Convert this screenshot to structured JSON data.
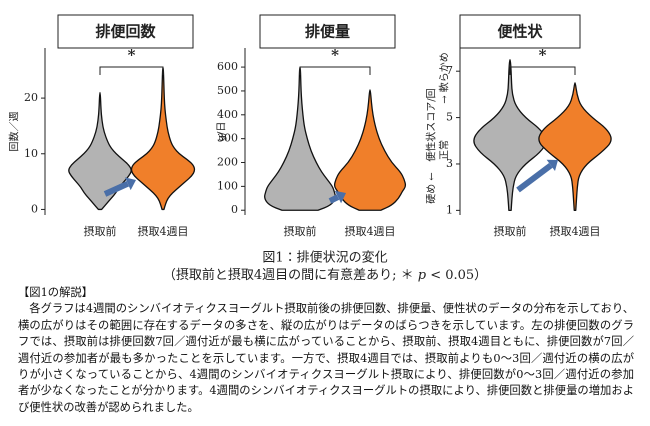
{
  "chart_data": [
    {
      "type": "violin",
      "title": "排便回数",
      "y_label": "回数／週",
      "categories": [
        "摂取前",
        "摂取4週目"
      ],
      "significance": "*",
      "ylim": [
        -1,
        29
      ],
      "yticks": [
        0,
        10,
        20
      ],
      "violins": [
        {
          "color": "#b3b3b3",
          "y": [
            0,
            1,
            2,
            3,
            4,
            5,
            6,
            7,
            8,
            9,
            10,
            11,
            12,
            14,
            16,
            18,
            21
          ],
          "width": [
            0.05,
            0.2,
            0.35,
            0.5,
            0.6,
            0.75,
            0.9,
            1,
            0.9,
            0.7,
            0.5,
            0.35,
            0.25,
            0.12,
            0.06,
            0.03,
            0.01
          ]
        },
        {
          "color": "#f07f2a",
          "y": [
            0,
            1,
            2,
            3,
            4,
            5,
            6,
            7,
            8,
            9,
            10,
            11,
            12,
            14,
            16,
            18,
            20,
            22,
            25.5
          ],
          "width": [
            0.03,
            0.08,
            0.15,
            0.3,
            0.5,
            0.7,
            0.9,
            1,
            0.95,
            0.75,
            0.5,
            0.35,
            0.25,
            0.15,
            0.1,
            0.06,
            0.04,
            0.03,
            0.01
          ]
        }
      ]
    },
    {
      "type": "violin",
      "title": "排便量",
      "y_label": "g/日",
      "categories": [
        "摂取前",
        "摂取4週目"
      ],
      "significance": "*",
      "ylim": [
        -20,
        680
      ],
      "yticks": [
        0,
        100,
        200,
        300,
        400,
        500,
        600
      ],
      "violins": [
        {
          "color": "#b3b3b3",
          "y": [
            0,
            20,
            50,
            80,
            100,
            130,
            160,
            200,
            250,
            300,
            350,
            400,
            450,
            500,
            550,
            600
          ],
          "width": [
            0.5,
            0.85,
            1,
            0.95,
            0.9,
            0.75,
            0.6,
            0.45,
            0.3,
            0.2,
            0.12,
            0.08,
            0.05,
            0.03,
            0.02,
            0.01
          ]
        },
        {
          "color": "#f07f2a",
          "y": [
            0,
            20,
            50,
            80,
            100,
            130,
            160,
            200,
            250,
            300,
            350,
            400,
            450,
            505
          ],
          "width": [
            0.3,
            0.6,
            0.8,
            0.9,
            1,
            0.95,
            0.85,
            0.6,
            0.4,
            0.25,
            0.15,
            0.08,
            0.04,
            0.01
          ]
        }
      ]
    },
    {
      "type": "violin",
      "title": "便性状",
      "y_label": "便性状スコア/回",
      "y_annotations": [
        "硬め ←",
        "正常",
        "→ 軟らかめ"
      ],
      "categories": [
        "摂取前",
        "摂取4週目"
      ],
      "significance": "*",
      "ylim": [
        0.8,
        8
      ],
      "yticks": [
        1,
        3,
        5,
        7
      ],
      "violins": [
        {
          "color": "#b3b3b3",
          "y": [
            1,
            1.5,
            2,
            2.5,
            3,
            3.5,
            4,
            4.5,
            5,
            5.5,
            6,
            6.5,
            7,
            7.5
          ],
          "width": [
            0.03,
            0.05,
            0.08,
            0.15,
            0.4,
            0.8,
            1,
            0.8,
            0.4,
            0.15,
            0.06,
            0.04,
            0.03,
            0.01
          ]
        },
        {
          "color": "#f07f2a",
          "y": [
            1,
            1.5,
            2,
            2.5,
            3,
            3.5,
            4,
            4.5,
            5,
            5.5,
            6,
            6.5
          ],
          "width": [
            0.02,
            0.04,
            0.06,
            0.1,
            0.3,
            0.7,
            1,
            0.85,
            0.45,
            0.15,
            0.05,
            0.01
          ]
        }
      ]
    }
  ],
  "figure": {
    "caption": "図1：排便状況の変化",
    "caption_sub": [
      "（摂取前と摂取4週目の間に有意差あり; ＊ ",
      "p",
      " < 0.05）"
    ],
    "note_heading": "【図1の解説】",
    "note_text": "各グラフは4週間のシンバイオティクスヨーグルト摂取前後の排便回数、排便量、便性状のデータの分布を示しており、横の広がりはその範囲に存在するデータの多さを、縦の広がりはデータのばらつきを示しています。左の排便回数のグラフでは、摂取前は排便回数7回／週付近が最も横に広がっていることから、摂取前、摂取4週目ともに、排便回数が7回／週付近の参加者が最も多かったことを示しています。一方で、摂取4週目では、摂取前よりも0～3回／週付近の横の広がりが小さくなっていることから、4週間のシンバイオティクスヨーグルト摂取により、排便回数が0～3回／週付近の参加者が少なくなったことが分かります。4週間のシンバイオティクスヨーグルトの摂取により、排便回数と排便量の増加および便性状の改善が認められました。"
  }
}
